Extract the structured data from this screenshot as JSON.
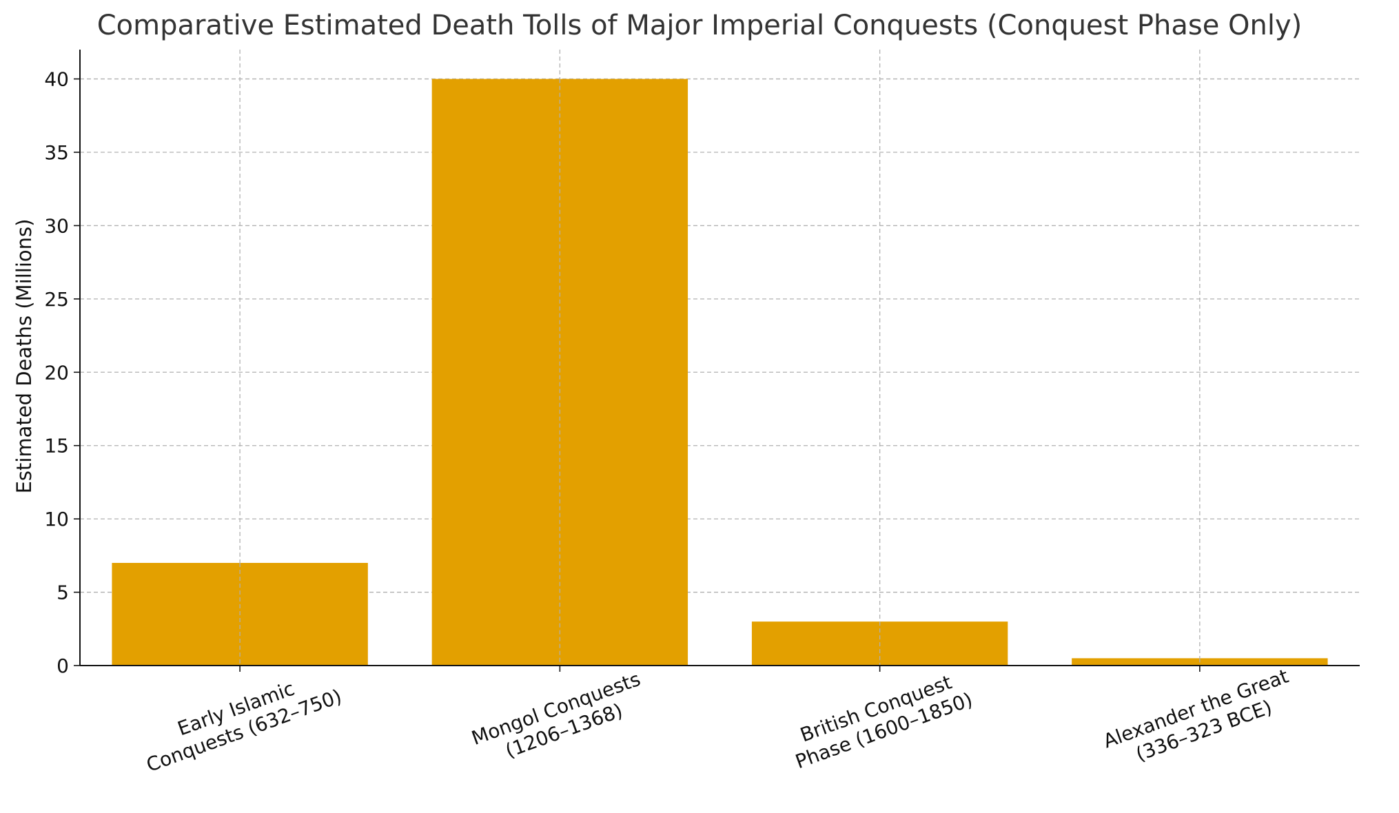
{
  "chart_data": {
    "type": "bar",
    "title": "Comparative Estimated Death Tolls of Major Imperial Conquests (Conquest Phase Only)",
    "xlabel": "",
    "ylabel": "Estimated Deaths (Millions)",
    "categories": [
      [
        "Early Islamic",
        "Conquests (632–750)"
      ],
      [
        "Mongol Conquests",
        "(1206–1368)"
      ],
      [
        "British Conquest",
        "Phase (1600–1850)"
      ],
      [
        "Alexander the Great",
        "(336–323 BCE)"
      ]
    ],
    "values": [
      7,
      40,
      3,
      0.5
    ],
    "ylim": [
      0,
      42
    ],
    "yticks": [
      0,
      5,
      10,
      15,
      20,
      25,
      30,
      35,
      40
    ],
    "grid": true,
    "bar_color": "#E3A000",
    "grid_color": "#b0b0b0"
  }
}
